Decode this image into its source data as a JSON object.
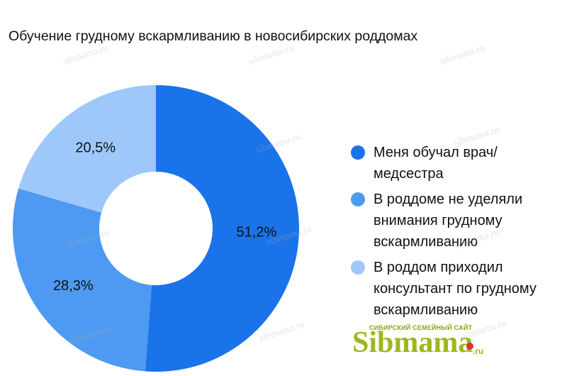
{
  "chart_data": {
    "type": "pie",
    "variant": "donut",
    "title": "Обучение грудному вскармливанию в новосибирских роддомах",
    "slices": [
      {
        "label": "Меня обучал врач/\nмедсестра",
        "value": 51.2,
        "value_label": "51,2%",
        "color": "#1a73e8"
      },
      {
        "label": "В роддоме не уделяли\nвнимания грудному\nвскармливанию",
        "value": 28.3,
        "value_label": "28,3%",
        "color": "#4e9af2"
      },
      {
        "label": "В роддом приходил\nконсультант по грудному\nвскармливанию",
        "value": 20.5,
        "value_label": "20,5%",
        "color": "#9ec8fa"
      }
    ],
    "legend_position": "right",
    "start_angle": "top",
    "direction": "clockwise"
  },
  "branding": {
    "tagline": "СИБИРСКИЙ СЕМЕЙНЫЙ САЙТ",
    "name": "Sibmama",
    "tld": ".ru",
    "watermark": "sibmama.ru"
  }
}
